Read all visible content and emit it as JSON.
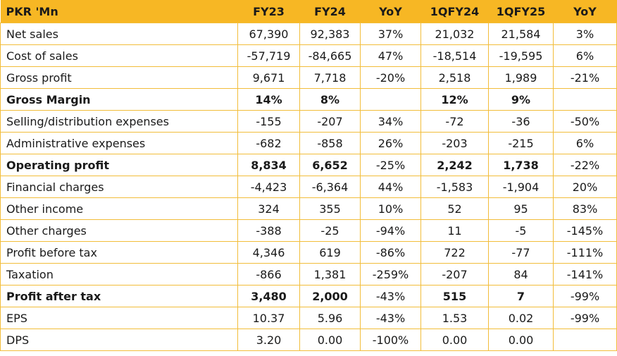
{
  "header": [
    "PKR 'Mn",
    "FY23",
    "FY24",
    "YoY",
    "1QFY24",
    "1QFY25",
    "YoY"
  ],
  "rows": [
    {
      "label": "Net sales",
      "bold": false,
      "values": [
        "67,390",
        "92,383",
        "37%",
        "21,032",
        "21,584",
        "3%"
      ]
    },
    {
      "label": "Cost of sales",
      "bold": false,
      "values": [
        "-57,719",
        "-84,665",
        "47%",
        "-18,514",
        "-19,595",
        "6%"
      ]
    },
    {
      "label": "Gross profit",
      "bold": false,
      "values": [
        "9,671",
        "7,718",
        "-20%",
        "2,518",
        "1,989",
        "-21%"
      ]
    },
    {
      "label": "Gross Margin",
      "bold": true,
      "values": [
        "14%",
        "8%",
        "",
        "12%",
        "9%",
        ""
      ]
    },
    {
      "label": "Selling/distribution expenses",
      "bold": false,
      "values": [
        "-155",
        "-207",
        "34%",
        "-72",
        "-36",
        "-50%"
      ]
    },
    {
      "label": "Administrative expenses",
      "bold": false,
      "values": [
        "-682",
        "-858",
        "26%",
        "-203",
        "-215",
        "6%"
      ]
    },
    {
      "label": "Operating profit",
      "bold": true,
      "values": [
        "8,834",
        "6,652",
        "-25%",
        "2,242",
        "1,738",
        "-22%"
      ]
    },
    {
      "label": "Financial charges",
      "bold": false,
      "values": [
        "-4,423",
        "-6,364",
        "44%",
        "-1,583",
        "-1,904",
        "20%"
      ]
    },
    {
      "label": "Other income",
      "bold": false,
      "values": [
        "324",
        "355",
        "10%",
        "52",
        "95",
        "83%"
      ]
    },
    {
      "label": "Other charges",
      "bold": false,
      "values": [
        "-388",
        "-25",
        "-94%",
        "11",
        "-5",
        "-145%"
      ]
    },
    {
      "label": "Profit before tax",
      "bold": false,
      "values": [
        "4,346",
        "619",
        "-86%",
        "722",
        "-77",
        "-111%"
      ]
    },
    {
      "label": "Taxation",
      "bold": false,
      "values": [
        "-866",
        "1,381",
        "-259%",
        "-207",
        "84",
        "-141%"
      ]
    },
    {
      "label": "Profit after tax",
      "bold": true,
      "values": [
        "3,480",
        "2,000",
        "-43%",
        "515",
        "7",
        "-99%"
      ]
    },
    {
      "label": "EPS",
      "bold": false,
      "values": [
        "10.37",
        "5.96",
        "-43%",
        "1.53",
        "0.02",
        "-99%"
      ]
    },
    {
      "label": "DPS",
      "bold": false,
      "values": [
        "3.20",
        "0.00",
        "-100%",
        "0.00",
        "0.00",
        ""
      ]
    }
  ],
  "colors": {
    "header_bg": "#f7b724",
    "border": "#f2bd3a"
  }
}
